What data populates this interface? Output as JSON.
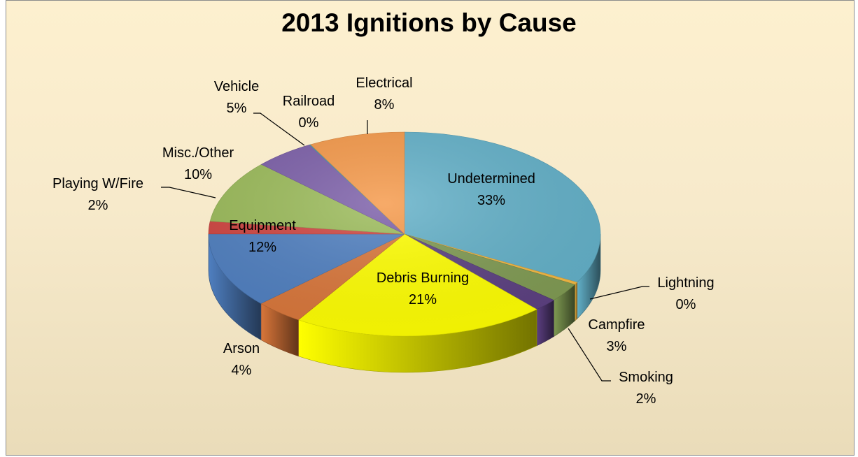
{
  "chart_data": {
    "type": "pie",
    "title": "2013 Ignitions by Cause",
    "slices": [
      {
        "label": "Undetermined",
        "value": 33,
        "value_label": "33%",
        "color": "#62b0c8"
      },
      {
        "label": "Lightning",
        "value": 0.4,
        "value_label": "0%",
        "color": "#f5b942"
      },
      {
        "label": "Campfire",
        "value": 3,
        "value_label": "3%",
        "color": "#7f9a52"
      },
      {
        "label": "Smoking",
        "value": 2,
        "value_label": "2%",
        "color": "#5b3f80"
      },
      {
        "label": "Debris Burning",
        "value": 21,
        "value_label": "21%",
        "color": "#ffff00"
      },
      {
        "label": "Arson",
        "value": 4,
        "value_label": "4%",
        "color": "#d9763a"
      },
      {
        "label": "Equipment",
        "value": 12,
        "value_label": "12%",
        "color": "#4f7fc0"
      },
      {
        "label": "Playing W/Fire",
        "value": 2,
        "value_label": "2%",
        "color": "#d04440"
      },
      {
        "label": "Misc./Other",
        "value": 10,
        "value_label": "10%",
        "color": "#9bbb59"
      },
      {
        "label": "Vehicle",
        "value": 5,
        "value_label": "5%",
        "color": "#7b5ea8"
      },
      {
        "label": "Railroad",
        "value": 0.1,
        "value_label": "0%",
        "color": "#4aa0b0"
      },
      {
        "label": "Electrical",
        "value": 8,
        "value_label": "8%",
        "color": "#f59848"
      }
    ]
  }
}
